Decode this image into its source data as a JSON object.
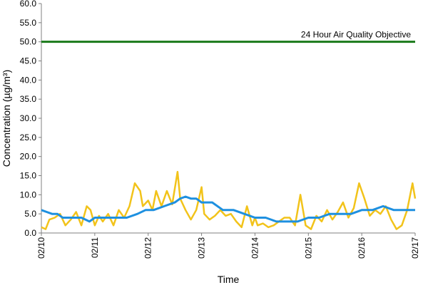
{
  "chart_data": {
    "type": "line",
    "title": "",
    "xlabel": "Time",
    "ylabel": "Concentration (µg/m³)",
    "ylim": [
      0,
      60
    ],
    "yticks": [
      "0.0",
      "5.0",
      "10.0",
      "15.0",
      "20.0",
      "25.0",
      "30.0",
      "35.0",
      "40.0",
      "45.0",
      "50.0",
      "55.0",
      "60.0"
    ],
    "xlim": [
      0,
      7
    ],
    "xticks": [
      "02/10",
      "02/11",
      "02/12",
      "02/13",
      "02/14",
      "02/15",
      "02/16",
      "02/17"
    ],
    "grid": false,
    "legend": "none",
    "reference_line": {
      "label": "24 Hour Air Quality Objective",
      "value": 50,
      "color": "#1a7a1a"
    },
    "series": [
      {
        "color": "#f2c31a",
        "x": [
          0,
          0.08,
          0.15,
          0.25,
          0.35,
          0.45,
          0.55,
          0.65,
          0.75,
          0.85,
          0.92,
          1.0,
          1.08,
          1.15,
          1.25,
          1.35,
          1.45,
          1.55,
          1.65,
          1.75,
          1.85,
          1.9,
          2.0,
          2.08,
          2.15,
          2.25,
          2.35,
          2.45,
          2.55,
          2.6,
          2.7,
          2.8,
          2.9,
          3.0,
          3.05,
          3.15,
          3.25,
          3.35,
          3.45,
          3.55,
          3.65,
          3.75,
          3.85,
          3.95,
          4.0,
          4.05,
          4.15,
          4.25,
          4.35,
          4.45,
          4.55,
          4.65,
          4.75,
          4.85,
          4.95,
          5.05,
          5.15,
          5.25,
          5.35,
          5.45,
          5.55,
          5.65,
          5.75,
          5.85,
          5.95,
          6.05,
          6.15,
          6.25,
          6.35,
          6.45,
          6.55,
          6.65,
          6.75,
          6.85,
          6.95,
          7.0
        ],
        "values": [
          1.5,
          1.0,
          3.5,
          4.0,
          5.0,
          2.0,
          3.5,
          5.5,
          2.0,
          7.0,
          6.0,
          2.0,
          4.5,
          3.0,
          5.0,
          2.0,
          6.0,
          4.0,
          7.0,
          13.0,
          11.0,
          7.0,
          8.5,
          6.0,
          11.0,
          7.0,
          11.0,
          7.5,
          16.0,
          9.0,
          6.0,
          3.5,
          6.0,
          12.0,
          5.0,
          3.5,
          4.5,
          6.0,
          4.5,
          5.0,
          3.0,
          1.5,
          7.0,
          2.0,
          4.0,
          2.0,
          2.5,
          1.5,
          2.0,
          3.0,
          4.0,
          4.0,
          2.0,
          10.0,
          2.0,
          1.0,
          4.5,
          3.0,
          6.0,
          3.5,
          5.5,
          8.0,
          4.0,
          6.5,
          13.0,
          9.0,
          4.5,
          6.0,
          5.0,
          7.0,
          3.5,
          1.0,
          2.0,
          6.0,
          13.0,
          9.0
        ]
      },
      {
        "color": "#1e90e0",
        "x": [
          0,
          0.1,
          0.2,
          0.3,
          0.4,
          0.6,
          0.75,
          0.9,
          1.0,
          1.2,
          1.4,
          1.6,
          1.8,
          1.95,
          2.1,
          2.3,
          2.5,
          2.6,
          2.7,
          2.8,
          2.9,
          3.0,
          3.2,
          3.4,
          3.6,
          3.8,
          4.0,
          4.2,
          4.4,
          4.6,
          4.8,
          5.0,
          5.2,
          5.4,
          5.6,
          5.8,
          6.0,
          6.2,
          6.4,
          6.6,
          6.8,
          7.0
        ],
        "values": [
          6.0,
          5.5,
          5.0,
          5.0,
          4.0,
          4.0,
          4.0,
          3.0,
          4.0,
          4.0,
          4.0,
          4.0,
          5.0,
          6.0,
          6.0,
          7.0,
          8.0,
          9.0,
          9.5,
          9.0,
          9.0,
          8.0,
          8.0,
          6.0,
          6.0,
          5.0,
          4.0,
          4.0,
          3.0,
          3.0,
          3.0,
          4.0,
          4.0,
          5.0,
          5.0,
          5.0,
          6.0,
          6.0,
          7.0,
          6.0,
          6.0,
          6.0
        ]
      }
    ]
  }
}
